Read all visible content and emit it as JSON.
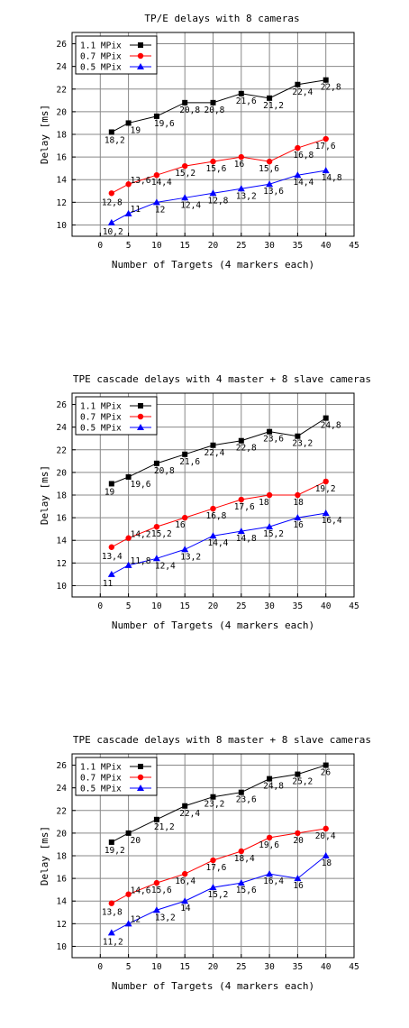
{
  "chart_data": [
    {
      "type": "line",
      "title": "TP/E delays with 8 cameras",
      "xlabel": "Number of Targets (4 markers each)",
      "ylabel": "Delay [ms]",
      "xlim": [
        -5,
        45
      ],
      "ylim": [
        9,
        27
      ],
      "xticks": [
        "0",
        "5",
        "10",
        "15",
        "20",
        "25",
        "30",
        "35",
        "40",
        "45"
      ],
      "yticks": [
        "10",
        "12",
        "14",
        "16",
        "18",
        "20",
        "22",
        "24",
        "26"
      ],
      "grid": true,
      "legend": "top-left",
      "x": [
        2,
        5,
        10,
        15,
        20,
        25,
        30,
        35,
        40
      ],
      "series": [
        {
          "name": "1.1 MPix",
          "color": "#000000",
          "marker": "square",
          "values": [
            18.2,
            19,
            19.6,
            20.8,
            20.8,
            21.6,
            21.2,
            22.4,
            22.8
          ],
          "labels": [
            "18,2",
            "19",
            "19,6",
            "20,8",
            "20,8",
            "21,6",
            "21,2",
            "22,4",
            "22,8"
          ]
        },
        {
          "name": "0.7 MPix",
          "color": "#ff0000",
          "marker": "circle",
          "values": [
            12.8,
            13.6,
            14.4,
            15.2,
            15.6,
            16,
            15.6,
            16.8,
            17.6
          ],
          "labels": [
            "12,8",
            "13,6",
            "14,4",
            "15,2",
            "15,6",
            "16",
            "15,6",
            "16,8",
            "17,6"
          ]
        },
        {
          "name": "0.5 MPix",
          "color": "#0000ff",
          "marker": "triangle",
          "values": [
            10.2,
            11,
            12,
            12.4,
            12.8,
            13.2,
            13.6,
            14.4,
            14.8
          ],
          "labels": [
            "10,2",
            "11",
            "12",
            "12,4",
            "12,8",
            "13,2",
            "13,6",
            "14,4",
            "14,8"
          ]
        }
      ]
    },
    {
      "type": "line",
      "title": "TPE cascade delays with 4 master + 8 slave cameras",
      "xlabel": "Number of Targets (4 markers each)",
      "ylabel": "Delay [ms]",
      "xlim": [
        -5,
        45
      ],
      "ylim": [
        9,
        27
      ],
      "xticks": [
        "0",
        "5",
        "10",
        "15",
        "20",
        "25",
        "30",
        "35",
        "40",
        "45"
      ],
      "yticks": [
        "10",
        "12",
        "14",
        "16",
        "18",
        "20",
        "22",
        "24",
        "26"
      ],
      "grid": true,
      "legend": "top-left",
      "x": [
        2,
        5,
        10,
        15,
        20,
        25,
        30,
        35,
        40
      ],
      "series": [
        {
          "name": "1.1 MPix",
          "color": "#000000",
          "marker": "square",
          "values": [
            19,
            19.6,
            20.8,
            21.6,
            22.4,
            22.8,
            23.6,
            23.2,
            24.8
          ],
          "labels": [
            "19",
            "19,6",
            "20,8",
            "21,6",
            "22,4",
            "22,8",
            "23,6",
            "23,2",
            "24,8"
          ]
        },
        {
          "name": "0.7 MPix",
          "color": "#ff0000",
          "marker": "circle",
          "values": [
            13.4,
            14.2,
            15.2,
            16,
            16.8,
            17.6,
            18,
            18,
            19.2
          ],
          "labels": [
            "13,4",
            "14,2",
            "15,2",
            "16",
            "16,8",
            "17,6",
            "18",
            "18",
            "19,2"
          ]
        },
        {
          "name": "0.5 MPix",
          "color": "#0000ff",
          "marker": "triangle",
          "values": [
            11,
            11.8,
            12.4,
            13.2,
            14.4,
            14.8,
            15.2,
            16,
            16.4
          ],
          "labels": [
            "11",
            "11,8",
            "12,4",
            "13,2",
            "14,4",
            "14,8",
            "15,2",
            "16",
            "16,4"
          ]
        }
      ]
    },
    {
      "type": "line",
      "title": "TPE cascade delays with 8 master + 8 slave cameras",
      "xlabel": "Number of Targets (4 markers each)",
      "ylabel": "Delay [ms]",
      "xlim": [
        -5,
        45
      ],
      "ylim": [
        9,
        27
      ],
      "xticks": [
        "0",
        "5",
        "10",
        "15",
        "20",
        "25",
        "30",
        "35",
        "40",
        "45"
      ],
      "yticks": [
        "10",
        "12",
        "14",
        "16",
        "18",
        "20",
        "22",
        "24",
        "26"
      ],
      "grid": true,
      "legend": "top-left",
      "x": [
        2,
        5,
        10,
        15,
        20,
        25,
        30,
        35,
        40
      ],
      "series": [
        {
          "name": "1.1 MPix",
          "color": "#000000",
          "marker": "square",
          "values": [
            19.2,
            20,
            21.2,
            22.4,
            23.2,
            23.6,
            24.8,
            25.2,
            26
          ],
          "labels": [
            "19,2",
            "20",
            "21,2",
            "22,4",
            "23,2",
            "23,6",
            "24,8",
            "25,2",
            "26"
          ]
        },
        {
          "name": "0.7 MPix",
          "color": "#ff0000",
          "marker": "circle",
          "values": [
            13.8,
            14.6,
            15.6,
            16.4,
            17.6,
            18.4,
            19.6,
            20,
            20.4
          ],
          "labels": [
            "13,8",
            "14,6",
            "15,6",
            "16,4",
            "17,6",
            "18,4",
            "19,6",
            "20",
            "20,4"
          ]
        },
        {
          "name": "0.5 MPix",
          "color": "#0000ff",
          "marker": "triangle",
          "values": [
            11.2,
            12,
            13.2,
            14,
            15.2,
            15.6,
            16.4,
            16,
            18
          ],
          "labels": [
            "11,2",
            "12",
            "13,2",
            "14",
            "15,2",
            "15,6",
            "16,4",
            "16",
            "18"
          ]
        }
      ]
    }
  ]
}
